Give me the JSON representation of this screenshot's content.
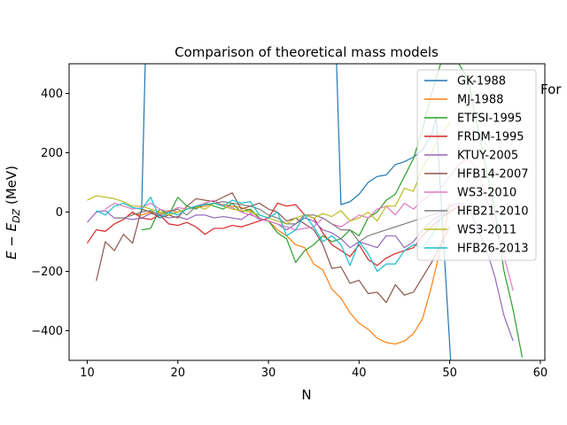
{
  "chart_data": {
    "type": "line",
    "title": "Comparison of theoretical mass models",
    "xlabel": "N",
    "ylabel": "E − E_DZ (MeV)",
    "ylabel_main": "E − E",
    "ylabel_sub": "DZ",
    "ylabel_unit": " (MeV)",
    "xlim": [
      8,
      60.5
    ],
    "ylim": [
      -500,
      500
    ],
    "xticks": [
      10,
      20,
      30,
      40,
      50,
      60
    ],
    "yticks": [
      -400,
      -200,
      0,
      200,
      400
    ],
    "xtick_labels": [
      "10",
      "20",
      "30",
      "40",
      "50",
      "60"
    ],
    "ytick_labels": [
      "−400",
      "−200",
      "0",
      "200",
      "400"
    ],
    "grid": false,
    "legend_position": "top-right",
    "stray_text": "For",
    "series": [
      {
        "name": "GK-1988",
        "color": "#1f77b4",
        "x": [
          10,
          16,
          16.8,
          37,
          38,
          39,
          40,
          41,
          42,
          43,
          44,
          45,
          46,
          47,
          48,
          48.5,
          50.3
        ],
        "y": [
          null,
          0,
          1000,
          1000,
          25,
          35,
          60,
          100,
          120,
          125,
          160,
          170,
          185,
          210,
          260,
          320,
          -600
        ]
      },
      {
        "name": "MJ-1988",
        "color": "#ff7f0e",
        "x": [
          15,
          16,
          17,
          18,
          19,
          20,
          21,
          22,
          23,
          24,
          25,
          26,
          27,
          28,
          29,
          30,
          31,
          32,
          33,
          34,
          35,
          36,
          37,
          38,
          39,
          40,
          41,
          42,
          43,
          44,
          45,
          46,
          47,
          48,
          49,
          50
        ],
        "y": [
          -5,
          -10,
          0,
          -5,
          5,
          0,
          10,
          15,
          20,
          30,
          25,
          20,
          15,
          5,
          -20,
          -30,
          -60,
          -80,
          -110,
          -120,
          -175,
          -195,
          -260,
          -290,
          -340,
          -375,
          -395,
          -425,
          -440,
          -445,
          -435,
          -410,
          -360,
          -250,
          -120,
          30
        ]
      },
      {
        "name": "ETFSI-1995",
        "color": "#2ca02c",
        "x": [
          16,
          17,
          18,
          19,
          20,
          21,
          22,
          23,
          24,
          25,
          26,
          27,
          28,
          29,
          30,
          31,
          32,
          33,
          34,
          35,
          36,
          37,
          38,
          39,
          40,
          41,
          42,
          43,
          44,
          45,
          46,
          47,
          48,
          49,
          50,
          51,
          52,
          53,
          54,
          55,
          56,
          57,
          58
        ],
        "y": [
          -60,
          -55,
          10,
          -10,
          50,
          20,
          10,
          30,
          20,
          10,
          30,
          0,
          10,
          -20,
          -30,
          -70,
          -90,
          -170,
          -130,
          -110,
          -80,
          -100,
          -90,
          -60,
          -80,
          -20,
          0,
          40,
          60,
          120,
          180,
          280,
          400,
          500,
          500,
          500,
          450,
          300,
          150,
          0,
          -200,
          -330,
          -490
        ]
      },
      {
        "name": "FRDM-1995",
        "color": "#d62728",
        "x": [
          10,
          11,
          12,
          13,
          14,
          15,
          16,
          17,
          18,
          19,
          20,
          21,
          22,
          23,
          24,
          25,
          26,
          27,
          28,
          29,
          30,
          31,
          32,
          33,
          34,
          35,
          36,
          37,
          38,
          39,
          40,
          41,
          42,
          43,
          44,
          45,
          46,
          47,
          48,
          49,
          50,
          51
        ],
        "y": [
          -105,
          -60,
          -65,
          -40,
          -25,
          0,
          -20,
          -25,
          -10,
          -40,
          -45,
          -35,
          -50,
          -75,
          -55,
          -55,
          -45,
          -50,
          -40,
          -30,
          -20,
          30,
          20,
          25,
          -10,
          -20,
          -70,
          -110,
          -130,
          -150,
          -110,
          -160,
          -180,
          -155,
          -140,
          -130,
          -120,
          -80,
          -50,
          -20,
          0,
          20
        ]
      },
      {
        "name": "KTUY-2005",
        "color": "#9467bd",
        "x": [
          10,
          11,
          12,
          13,
          14,
          15,
          16,
          17,
          18,
          19,
          20,
          21,
          22,
          23,
          24,
          25,
          26,
          27,
          28,
          29,
          30,
          31,
          32,
          33,
          34,
          35,
          36,
          37,
          38,
          39,
          40,
          41,
          42,
          43,
          44,
          45,
          46,
          47,
          48,
          49,
          50,
          51,
          52,
          53,
          54,
          55,
          56,
          57
        ],
        "y": [
          -35,
          0,
          5,
          -20,
          -20,
          -25,
          -20,
          -5,
          -10,
          -20,
          -15,
          -25,
          -10,
          -10,
          -20,
          -15,
          -20,
          -25,
          -5,
          -25,
          -30,
          -40,
          -60,
          -40,
          -20,
          -30,
          -60,
          -70,
          -90,
          -120,
          -100,
          -110,
          -120,
          -80,
          -80,
          -120,
          -100,
          -60,
          -30,
          -10,
          20,
          30,
          20,
          -50,
          -120,
          -220,
          -350,
          -435
        ]
      },
      {
        "name": "HFB14-2007",
        "color": "#8c564b",
        "x": [
          11,
          12,
          13,
          14,
          15,
          16,
          17,
          18,
          19,
          20,
          21,
          22,
          23,
          24,
          25,
          26,
          27,
          28,
          29,
          30,
          31,
          32,
          33,
          34,
          35,
          36,
          37,
          38,
          39,
          40,
          41,
          42,
          43,
          44,
          45,
          46,
          47,
          48,
          49,
          50
        ],
        "y": [
          -232,
          -100,
          -130,
          -75,
          -105,
          10,
          0,
          -20,
          -10,
          -20,
          20,
          45,
          40,
          35,
          50,
          65,
          10,
          20,
          30,
          10,
          0,
          -30,
          -20,
          -40,
          -60,
          -110,
          -190,
          -185,
          -240,
          -230,
          -275,
          -270,
          -305,
          -245,
          -280,
          -270,
          -220,
          -170,
          -110,
          -50
        ]
      },
      {
        "name": "WS3-2010",
        "color": "#e377c2",
        "x": [
          12,
          13,
          14,
          15,
          16,
          17,
          18,
          19,
          20,
          21,
          22,
          23,
          24,
          25,
          26,
          27,
          28,
          29,
          30,
          31,
          32,
          33,
          34,
          35,
          36,
          37,
          38,
          39,
          40,
          41,
          42,
          43,
          44,
          45,
          46,
          47,
          48,
          49,
          50,
          51,
          52,
          53,
          54,
          55,
          56,
          57
        ],
        "y": [
          10,
          30,
          20,
          10,
          15,
          30,
          10,
          0,
          15,
          10,
          20,
          30,
          40,
          20,
          15,
          0,
          -10,
          -20,
          -30,
          -40,
          -50,
          -60,
          -55,
          -50,
          -20,
          -40,
          -50,
          -30,
          -10,
          -20,
          10,
          20,
          -10,
          30,
          10,
          40,
          60,
          80,
          120,
          160,
          180,
          150,
          50,
          -50,
          -150,
          -265
        ]
      },
      {
        "name": "HFB21-2010",
        "color": "#7f7f7f",
        "x": [
          13,
          14,
          15,
          16,
          17,
          18,
          19,
          20,
          21,
          22,
          23,
          24,
          25,
          26,
          27,
          28,
          29,
          30,
          31,
          32,
          33,
          34,
          35,
          36,
          37,
          38,
          39,
          40,
          41,
          42,
          43,
          44,
          45,
          46,
          47,
          48,
          49,
          50
        ],
        "y": [
          -20,
          -20,
          -10,
          0,
          5,
          -10,
          0,
          10,
          -10,
          20,
          25,
          30,
          35,
          30,
          25,
          20,
          10,
          -10,
          -20,
          -40,
          -40,
          -10,
          -10,
          -20,
          -40,
          -60,
          -60,
          -100,
          -80,
          -70,
          -60,
          -50,
          -40,
          -30,
          -20,
          -10,
          0,
          10
        ]
      },
      {
        "name": "WS3-2011",
        "color": "#bcbd22",
        "x": [
          10,
          11,
          12,
          13,
          14,
          15,
          16,
          17,
          18,
          19,
          20,
          21,
          22,
          23,
          24,
          25,
          26,
          27,
          28,
          29,
          30,
          31,
          32,
          33,
          34,
          35,
          36,
          37,
          38,
          39,
          40,
          41,
          42,
          43,
          44,
          45,
          46,
          47,
          48,
          49,
          50
        ],
        "y": [
          40,
          55,
          50,
          45,
          35,
          20,
          20,
          10,
          0,
          -10,
          0,
          10,
          20,
          10,
          30,
          20,
          10,
          5,
          0,
          -10,
          -20,
          -30,
          -40,
          -20,
          -10,
          -20,
          -5,
          -15,
          5,
          -30,
          -20,
          0,
          -30,
          20,
          20,
          80,
          70,
          150,
          200,
          260,
          300
        ]
      },
      {
        "name": "HFB26-2013",
        "color": "#17becf",
        "x": [
          11,
          12,
          13,
          14,
          15,
          16,
          17,
          18,
          19,
          20,
          21,
          22,
          23,
          24,
          25,
          26,
          27,
          28,
          29,
          30,
          31,
          32,
          33,
          34,
          35,
          36,
          37,
          38,
          39,
          40,
          41,
          42,
          43,
          44,
          45,
          46,
          47,
          48,
          49,
          50
        ],
        "y": [
          5,
          -10,
          20,
          30,
          15,
          10,
          50,
          -20,
          0,
          -10,
          10,
          20,
          25,
          30,
          20,
          40,
          30,
          35,
          -10,
          -20,
          0,
          -80,
          -60,
          -10,
          -50,
          -100,
          -80,
          -110,
          -180,
          -100,
          -140,
          -200,
          -175,
          -175,
          -130,
          -110,
          -120,
          -80,
          -20,
          10
        ]
      }
    ]
  }
}
